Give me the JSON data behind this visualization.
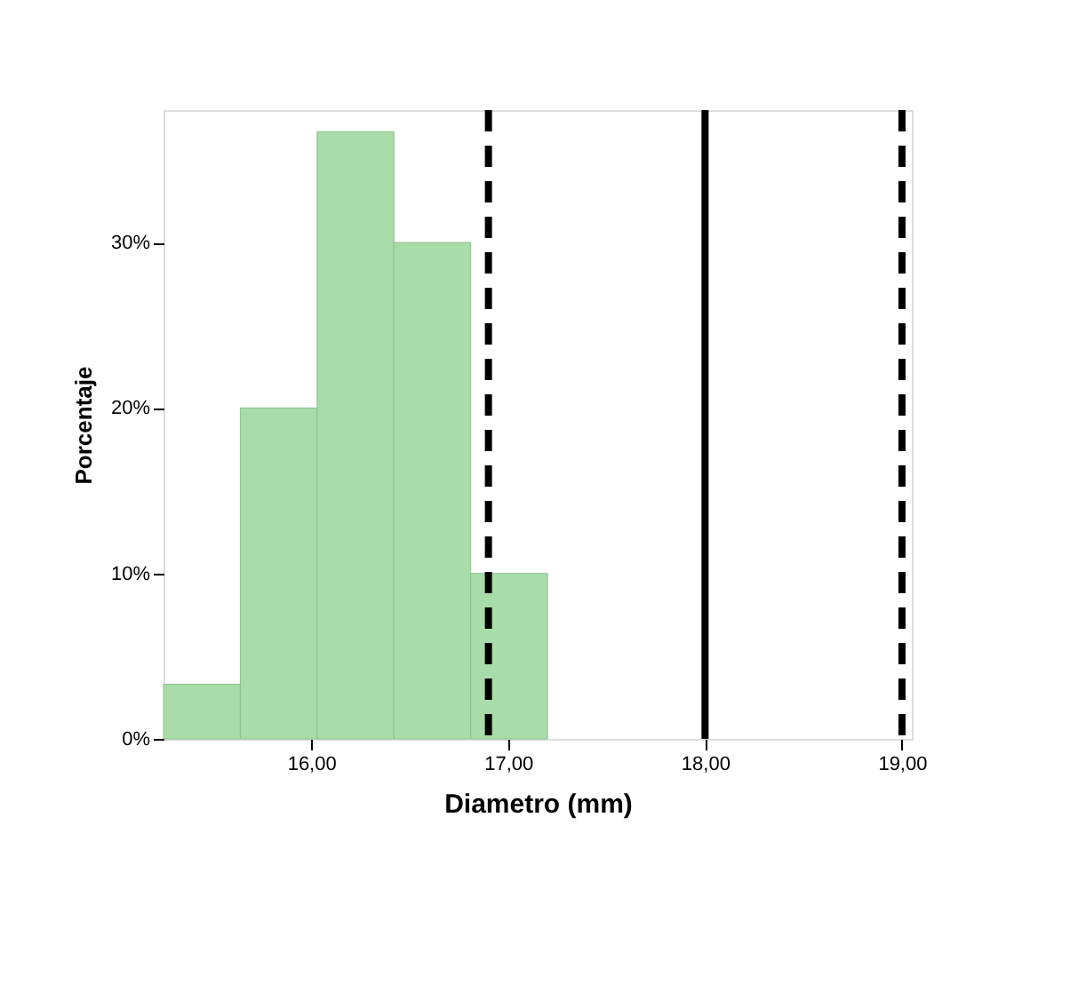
{
  "chart_data": {
    "type": "histogram",
    "xlabel": "Diametro (mm)",
    "ylabel": "Porcentaje",
    "bins": [
      15.25,
      15.64,
      16.03,
      16.42,
      16.81,
      17.2
    ],
    "values": [
      3.3,
      20,
      36.7,
      30,
      10
    ],
    "color": "#a8dca8",
    "xlim": [
      15.25,
      19.05
    ],
    "xticks": [
      {
        "value": 16,
        "label": "16,00"
      },
      {
        "value": 17,
        "label": "17,00"
      },
      {
        "value": 18,
        "label": "18,00"
      },
      {
        "value": 19,
        "label": "19,00"
      }
    ],
    "ylim": [
      0,
      38
    ],
    "yticks": [
      {
        "value": 0,
        "label": "0%"
      },
      {
        "value": 10,
        "label": "10%"
      },
      {
        "value": 20,
        "label": "20%"
      },
      {
        "value": 30,
        "label": "30%"
      }
    ],
    "ref_lines": [
      {
        "axis": "x",
        "value": 16.9,
        "color": "#000000",
        "line_style": "dashed"
      },
      {
        "axis": "x",
        "value": 18.0,
        "color": "#000000",
        "line_style": "solid"
      },
      {
        "axis": "x",
        "value": 19.0,
        "color": "#000000",
        "line_style": "dashed"
      }
    ],
    "grid": false
  }
}
